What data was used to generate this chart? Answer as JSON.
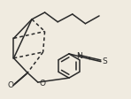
{
  "bg_color": "#f0ebe0",
  "line_color": "#2a2a2a",
  "line_width": 1.1,
  "figsize": [
    1.48,
    1.13
  ],
  "dpi": 100,
  "xlim": [
    0,
    148
  ],
  "ylim": [
    0,
    113
  ]
}
